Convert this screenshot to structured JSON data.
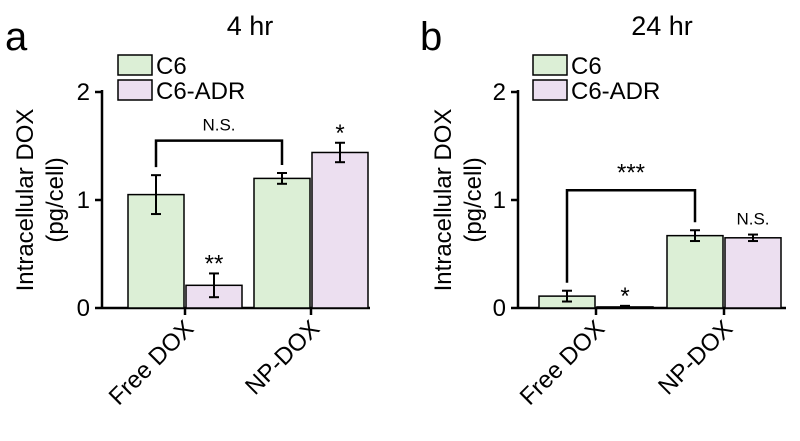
{
  "colors": {
    "C6": "#dcefd6",
    "C6-ADR": "#ecdff0"
  },
  "chart_data": [
    {
      "type": "bar",
      "panel": "a",
      "title": "4 hr",
      "xlabel": "",
      "ylabel": "Intracellular DOX (pg/cell)",
      "ylabel_lines": [
        "Intracellular DOX",
        "(pg/cell)"
      ],
      "ylim": [
        0,
        2
      ],
      "yticks": [
        0,
        1,
        2
      ],
      "categories": [
        "Free DOX",
        "NP-DOX"
      ],
      "series": [
        {
          "name": "C6",
          "values": [
            1.05,
            1.2
          ],
          "errors": [
            0.18,
            0.05
          ]
        },
        {
          "name": "C6-ADR",
          "values": [
            0.21,
            1.44
          ],
          "errors": [
            0.11,
            0.09
          ]
        }
      ],
      "legend": "top-left",
      "annotations": [
        {
          "text": "**",
          "category": 0,
          "series": 1
        },
        {
          "text": "*",
          "category": 1,
          "series": 1
        },
        {
          "text": "N.S.",
          "type": "bracket",
          "from": [
            0,
            0
          ],
          "to": [
            1,
            0
          ],
          "y": 1.55
        }
      ]
    },
    {
      "type": "bar",
      "panel": "b",
      "title": "24 hr",
      "xlabel": "",
      "ylabel": "Intracellular DOX (pg/cell)",
      "ylabel_lines": [
        "Intracellular DOX",
        "(pg/cell)"
      ],
      "ylim": [
        0,
        2
      ],
      "yticks": [
        0,
        1,
        2
      ],
      "categories": [
        "Free DOX",
        "NP-DOX"
      ],
      "series": [
        {
          "name": "C6",
          "values": [
            0.11,
            0.67
          ],
          "errors": [
            0.05,
            0.05
          ]
        },
        {
          "name": "C6-ADR",
          "values": [
            0.01,
            0.65
          ],
          "errors": [
            0.01,
            0.03
          ]
        }
      ],
      "legend": "top-left",
      "annotations": [
        {
          "text": "*",
          "category": 0,
          "series": 1
        },
        {
          "text": "N.S.",
          "category": 1,
          "series": 1
        },
        {
          "text": "***",
          "type": "bracket",
          "from": [
            0,
            0
          ],
          "to": [
            1,
            0
          ],
          "y": 1.09
        }
      ]
    }
  ]
}
